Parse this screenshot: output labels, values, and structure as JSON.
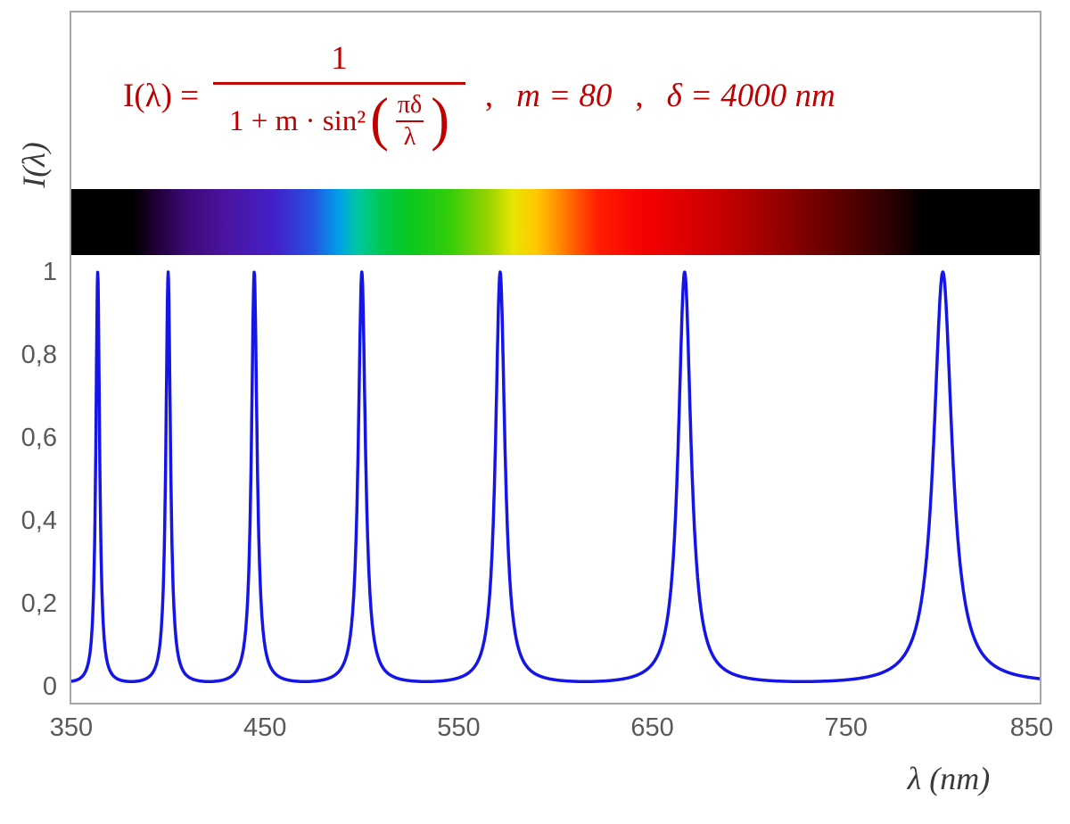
{
  "figure": {
    "background": "#ffffff",
    "frame_border_color": "#a6a6a6"
  },
  "formula": {
    "lhs": "I(λ) =",
    "numerator": "1",
    "den_prefix": "1 + m · sin²",
    "open_paren": "(",
    "close_paren": ")",
    "inner_num": "πδ",
    "inner_den": "λ",
    "comma": ",",
    "param_m": "m = 80",
    "param_delta": "δ = 4000 nm",
    "color": "#c00000"
  },
  "axes": {
    "x_title": "λ  (nm)",
    "y_title": "I(λ)",
    "tick_color": "#595959"
  },
  "chart_data": {
    "type": "line",
    "title": "I(λ) = 1 / (1 + m·sin²(πδ/λ)) ,  m = 80 ,  δ = 4000 nm",
    "function": "I(lambda) = 1 / (1 + m * sin^2(pi * delta / lambda))",
    "params": {
      "m": 80,
      "delta_nm": 4000
    },
    "xlabel": "λ (nm)",
    "ylabel": "I(λ)",
    "x_range_nm": [
      350,
      850
    ],
    "ylim": [
      0,
      1
    ],
    "x_ticks": [
      350,
      450,
      550,
      650,
      750,
      850
    ],
    "y_ticks": [
      {
        "label": "0",
        "value": 0
      },
      {
        "label": "0,2",
        "value": 0.2
      },
      {
        "label": "0,4",
        "value": 0.4
      },
      {
        "label": "0,6",
        "value": 0.6
      },
      {
        "label": "0,8",
        "value": 0.8
      },
      {
        "label": "1",
        "value": 1
      }
    ],
    "peaks_nm": [
      363.64,
      400,
      444.44,
      500,
      571.43,
      666.67,
      800
    ],
    "peak_value": 1,
    "min_value": 0.0123,
    "line_color": "#1515e8",
    "grid": false,
    "legend": false,
    "spectrum_bar": {
      "stops": [
        [
          350,
          "#000000"
        ],
        [
          382,
          "#000000"
        ],
        [
          395,
          "#22003c"
        ],
        [
          410,
          "#3c0a78"
        ],
        [
          430,
          "#4a14a0"
        ],
        [
          455,
          "#4420c8"
        ],
        [
          475,
          "#2255e0"
        ],
        [
          488,
          "#00a0e8"
        ],
        [
          498,
          "#00c8a0"
        ],
        [
          510,
          "#00c850"
        ],
        [
          525,
          "#0ac81e"
        ],
        [
          545,
          "#32cd0a"
        ],
        [
          565,
          "#96d200"
        ],
        [
          578,
          "#e6e600"
        ],
        [
          590,
          "#ffc800"
        ],
        [
          600,
          "#ff9600"
        ],
        [
          612,
          "#ff5000"
        ],
        [
          622,
          "#ff1e00"
        ],
        [
          645,
          "#f50000"
        ],
        [
          665,
          "#e00000"
        ],
        [
          690,
          "#c00000"
        ],
        [
          715,
          "#960000"
        ],
        [
          740,
          "#6a0000"
        ],
        [
          765,
          "#3c0000"
        ],
        [
          780,
          "#1a0000"
        ],
        [
          790,
          "#000000"
        ],
        [
          850,
          "#000000"
        ]
      ]
    }
  }
}
